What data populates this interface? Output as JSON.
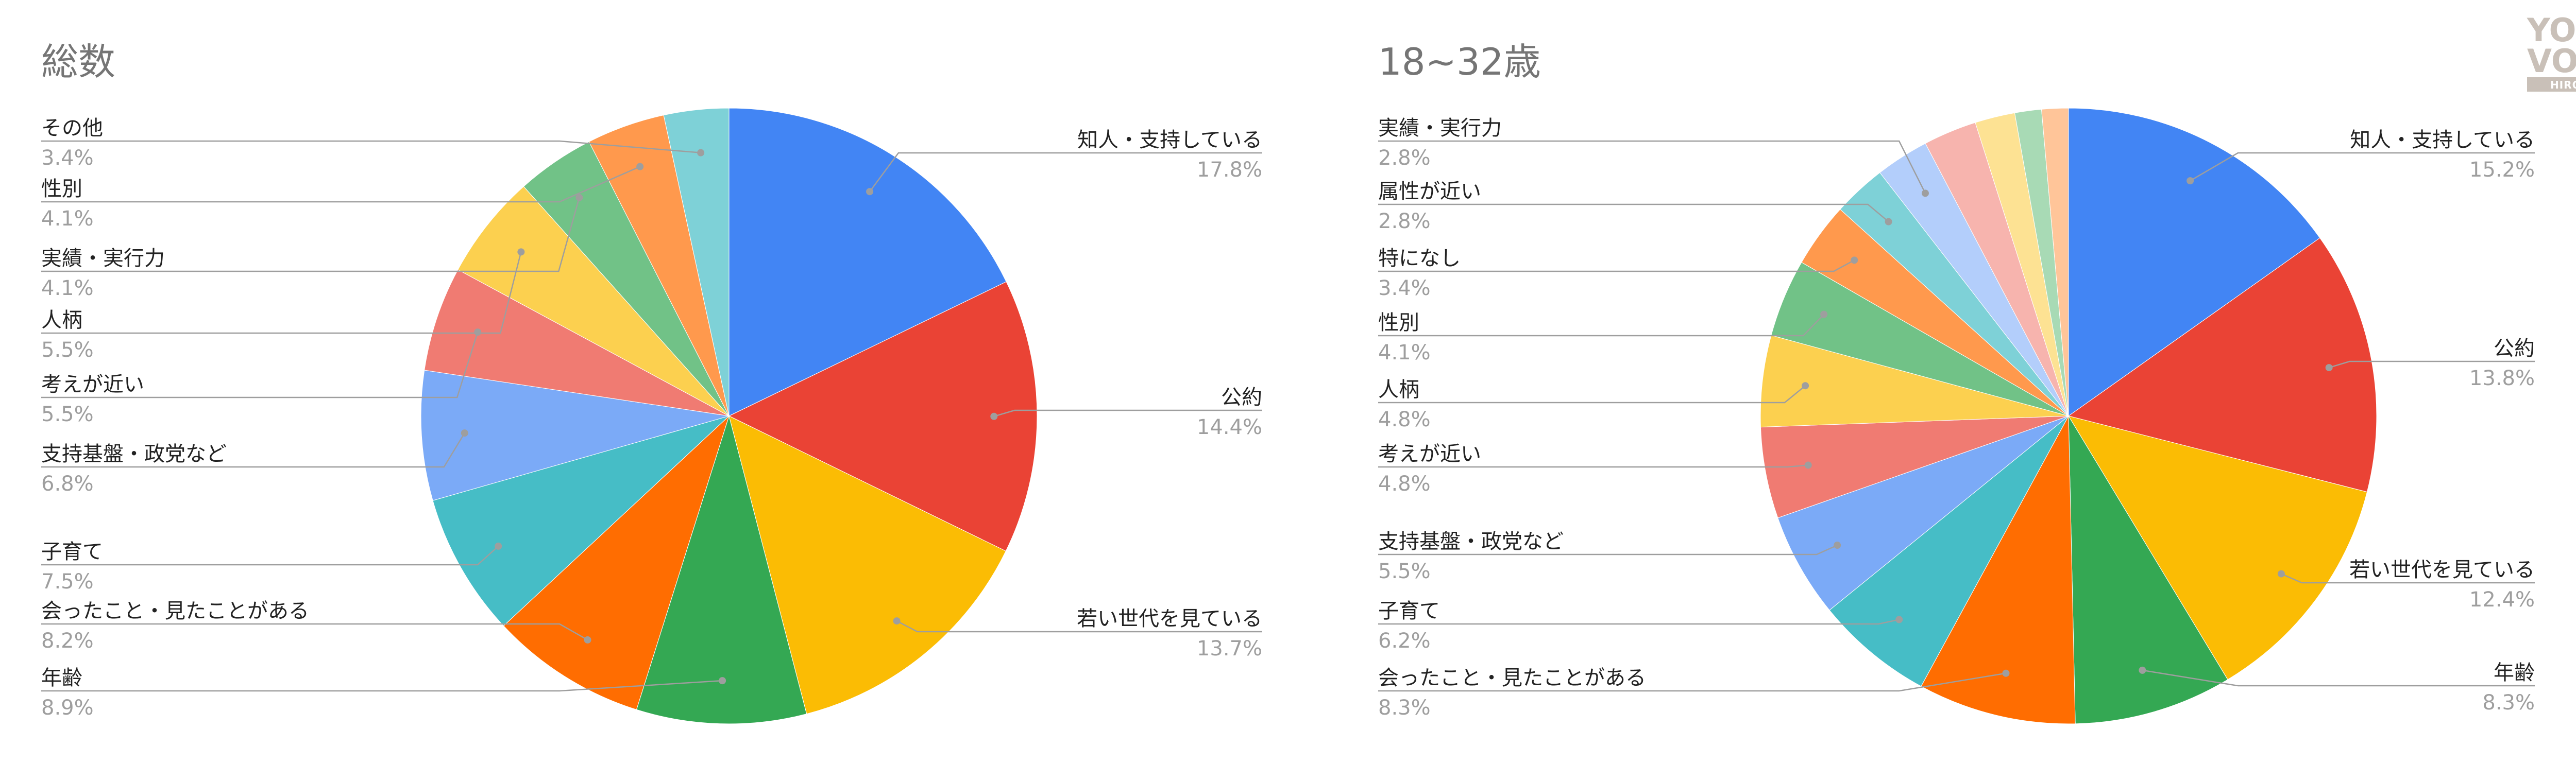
{
  "logo": {
    "line1": "YOUTH",
    "line2": "VOTE",
    "mark": "!",
    "sub": "HIROSHIMA",
    "color": "#c9c0b8"
  },
  "chart_data": [
    {
      "type": "pie",
      "title": "総数",
      "slices": [
        {
          "label": "知人・支持している",
          "value": 17.8,
          "pct": "17.8%",
          "color": "#4285f4"
        },
        {
          "label": "公約",
          "value": 14.4,
          "pct": "14.4%",
          "color": "#ea4335"
        },
        {
          "label": "若い世代を見ている",
          "value": 13.7,
          "pct": "13.7%",
          "color": "#fbbc04"
        },
        {
          "label": "年齢",
          "value": 8.9,
          "pct": "8.9%",
          "color": "#34a853"
        },
        {
          "label": "会ったこと・見たことがある",
          "value": 8.2,
          "pct": "8.2%",
          "color": "#ff6d01"
        },
        {
          "label": "子育て",
          "value": 7.5,
          "pct": "7.5%",
          "color": "#46bdc6"
        },
        {
          "label": "支持基盤・政党など",
          "value": 6.8,
          "pct": "6.8%",
          "color": "#7baaf7"
        },
        {
          "label": "考えが近い",
          "value": 5.5,
          "pct": "5.5%",
          "color": "#f07b72"
        },
        {
          "label": "人柄",
          "value": 5.5,
          "pct": "5.5%",
          "color": "#fcd04f"
        },
        {
          "label": "実績・実行力",
          "value": 4.1,
          "pct": "4.1%",
          "color": "#71c287"
        },
        {
          "label": "性別",
          "value": 4.1,
          "pct": "4.1%",
          "color": "#ff994d"
        },
        {
          "label": "その他",
          "value": 3.4,
          "pct": "3.4%",
          "color": "#7ed1d7"
        }
      ]
    },
    {
      "type": "pie",
      "title": "18~32歳",
      "slices": [
        {
          "label": "知人・支持している",
          "value": 15.2,
          "pct": "15.2%",
          "color": "#4285f4"
        },
        {
          "label": "公約",
          "value": 13.8,
          "pct": "13.8%",
          "color": "#ea4335"
        },
        {
          "label": "若い世代を見ている",
          "value": 12.4,
          "pct": "12.4%",
          "color": "#fbbc04"
        },
        {
          "label": "年齢",
          "value": 8.3,
          "pct": "8.3%",
          "color": "#34a853"
        },
        {
          "label": "会ったこと・見たことがある",
          "value": 8.3,
          "pct": "8.3%",
          "color": "#ff6d01"
        },
        {
          "label": "子育て",
          "value": 6.2,
          "pct": "6.2%",
          "color": "#46bdc6"
        },
        {
          "label": "支持基盤・政党など",
          "value": 5.5,
          "pct": "5.5%",
          "color": "#7baaf7"
        },
        {
          "label": "考えが近い",
          "value": 4.8,
          "pct": "4.8%",
          "color": "#f07b72"
        },
        {
          "label": "人柄",
          "value": 4.8,
          "pct": "4.8%",
          "color": "#fcd04f"
        },
        {
          "label": "性別",
          "value": 4.1,
          "pct": "4.1%",
          "color": "#71c287"
        },
        {
          "label": "特になし",
          "value": 3.4,
          "pct": "3.4%",
          "color": "#ff994d"
        },
        {
          "label": "属性が近い",
          "value": 2.8,
          "pct": "2.8%",
          "color": "#7ed1d7"
        },
        {
          "label": "実績・実行力",
          "value": 2.8,
          "pct": "2.8%",
          "color": "#b3cefb"
        },
        {
          "value": 2.8,
          "color": "#f7b4ae"
        },
        {
          "value": 2.1,
          "color": "#fde293"
        },
        {
          "value": 1.4,
          "color": "#a8dab5"
        },
        {
          "value": 1.4,
          "color": "#ffc599"
        }
      ]
    }
  ]
}
